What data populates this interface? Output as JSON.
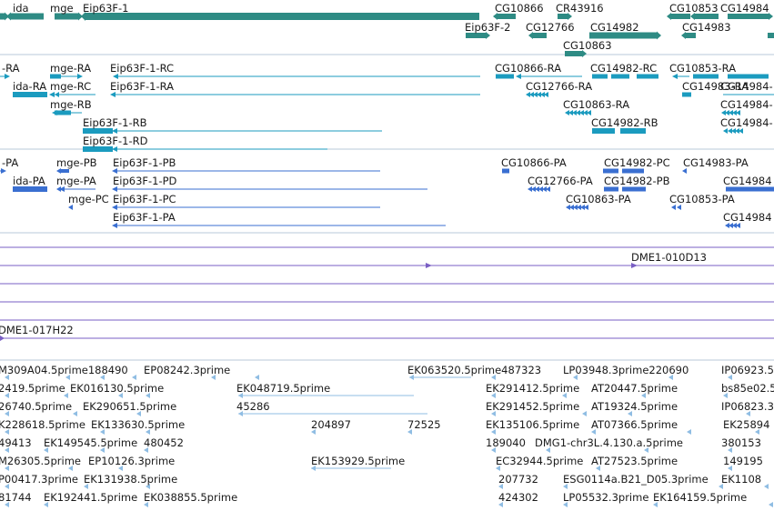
{
  "track_colors": {
    "gene": "#2e8b84",
    "transcript": "#1b9bbf",
    "protein": "#3a6fd1",
    "clone": "#7a5fc4",
    "est": "#8fbde3",
    "track_rule": "#b9c9d9"
  },
  "tracks": {
    "gene": {
      "labels": [
        "ida",
        "mge",
        "Eip63F-1",
        "CG10866",
        "CR43916",
        "CG10853",
        "CG14984",
        "Eip63F-2",
        "CG12766",
        "CG14982",
        "CG14983",
        "CG10863"
      ]
    },
    "transcript": {
      "labels": [
        "-RA",
        "mge-RA",
        "Eip63F-1-RC",
        "CG10866-RA",
        "CG14982-RC",
        "CG10853-RA",
        "ida-RA",
        "mge-RC",
        "Eip63F-1-RA",
        "CG12766-RA",
        "CG14983-RA",
        "CG14984-",
        "mge-RB",
        "CG10863-RA",
        "CG14984-",
        "Eip63F-1-RB",
        "CG14982-RB",
        "CG14984-",
        "Eip63F-1-RD"
      ]
    },
    "protein": {
      "labels": [
        "-PA",
        "mge-PB",
        "Eip63F-1-PB",
        "CG10866-PA",
        "CG14982-PC",
        "CG14983-PA",
        "ida-PA",
        "mge-PA",
        "Eip63F-1-PD",
        "CG12766-PA",
        "CG14982-PB",
        "CG14984",
        "mge-PC",
        "Eip63F-1-PC",
        "CG10863-PA",
        "CG10853-PA",
        "Eip63F-1-PA",
        "CG14984"
      ]
    },
    "clone": {
      "labels": [
        "DME1-010D13",
        "DME1-017H22"
      ]
    },
    "est": {
      "labels": [
        "M309A04.5prime188490",
        "EP08242.3prime",
        "EK063520.5prime487323",
        "LP03948.3prime220690",
        "IP06923.5",
        "2419.5prime",
        "EK016130.5prime",
        "EK048719.5prime",
        "EK291412.5prime",
        "AT20447.5prime",
        "bs85e02.5",
        "26740.5prime",
        "EK290651.5prime",
        "45286",
        "EK291452.5prime",
        "AT19324.5prime",
        "IP06823.3",
        "K228618.5prime",
        "EK133630.5prime",
        "204897",
        "72525",
        "EK135106.5prime",
        "AT07366.5prime",
        "EK25894",
        "49413",
        "EK149545.5prime",
        "480452",
        "189040",
        "DMG1-chr3L.4.130.a.5prime",
        "380153",
        "M26305.5prime",
        "EP10126.3prime",
        "EK153929.5prime",
        "EC32944.5prime",
        "AT27523.5prime",
        "149195",
        "P00417.3prime",
        "EK131938.5prime",
        "207732",
        "ESG0114a.B21_D05.3prime",
        "EK1108",
        "81744",
        "EK192441.5prime",
        "EK038855.5prime",
        "424302",
        "LP05532.3prime",
        "EK164159.5prime"
      ]
    }
  }
}
